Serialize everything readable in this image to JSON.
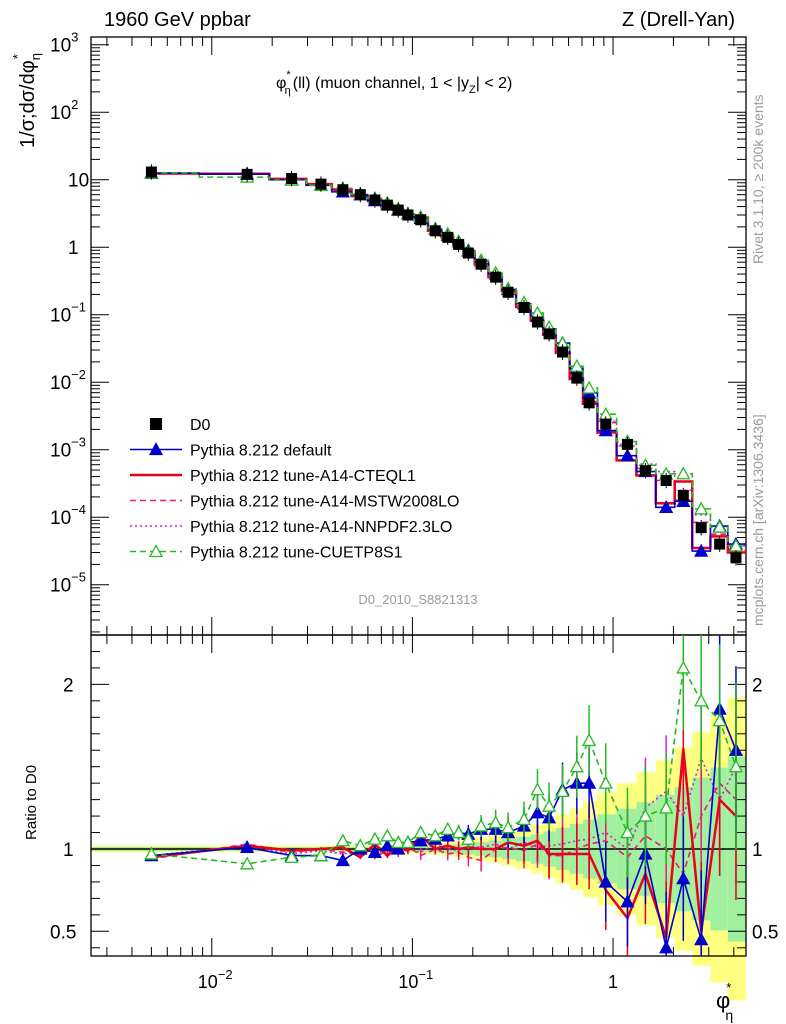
{
  "header": {
    "left": "1960 GeV ppbar",
    "right": "Z (Drell-Yan)"
  },
  "side_labels": {
    "rivet": "Rivet 3.1.10, ≥ 200k events",
    "mcplots": "mcplots.cern.ch [arXiv:1306.3436]"
  },
  "chart_data": {
    "type": "line",
    "title": "φ*η(ll) (muon channel, 1 < |yZ| < 2)",
    "title_parts": {
      "phi": "φ",
      "star": "*",
      "eta": "η",
      "rest1": "(ll) (muon channel, 1 < |y",
      "sub": "Z",
      "rest2": "| < 2)"
    },
    "analysis_id": "D0_2010_S8821313",
    "xlabel": {
      "base": "φ",
      "sup": "*",
      "sub": "η"
    },
    "ylabel": {
      "main": "1/σ;dσ/dφ",
      "sub": "η",
      "sup": "*"
    },
    "ratio_ylabel": "Ratio to D0",
    "xscale": "log",
    "yscale": "log",
    "xlim": [
      0.0025,
      4.6
    ],
    "ylim": [
      1.8e-06,
      1300
    ],
    "ratio_ylim": [
      0.35,
      2.3
    ],
    "x_ticks": [
      {
        "v": 0.01,
        "base": "10",
        "exp": "−2"
      },
      {
        "v": 0.1,
        "base": "10",
        "exp": "−1"
      },
      {
        "v": 1,
        "base": "1",
        "exp": ""
      }
    ],
    "y_ticks": [
      {
        "v": 1e-05,
        "base": "10",
        "exp": "−5"
      },
      {
        "v": 0.0001,
        "base": "10",
        "exp": "−4"
      },
      {
        "v": 0.001,
        "base": "10",
        "exp": "−3"
      },
      {
        "v": 0.01,
        "base": "10",
        "exp": "−2"
      },
      {
        "v": 0.1,
        "base": "10",
        "exp": "−1"
      },
      {
        "v": 1,
        "base": "1",
        "exp": ""
      },
      {
        "v": 10,
        "base": "10",
        "exp": ""
      },
      {
        "v": 100,
        "base": "10",
        "exp": "2"
      },
      {
        "v": 1000,
        "base": "10",
        "exp": "3"
      }
    ],
    "ratio_ticks": [
      {
        "v": 0.5,
        "label": "0.5"
      },
      {
        "v": 1,
        "label": "1"
      },
      {
        "v": 2,
        "label": "2"
      }
    ],
    "x": [
      0.005,
      0.015,
      0.025,
      0.035,
      0.045,
      0.055,
      0.065,
      0.075,
      0.085,
      0.095,
      0.11,
      0.13,
      0.15,
      0.17,
      0.19,
      0.22,
      0.26,
      0.3,
      0.36,
      0.42,
      0.48,
      0.56,
      0.66,
      0.76,
      0.92,
      1.18,
      1.45,
      1.84,
      2.24,
      2.75,
      3.4,
      4.1
    ],
    "data_values": [
      13.0,
      12.0,
      10.4,
      8.6,
      7.1,
      6.0,
      5.0,
      4.2,
      3.55,
      3.0,
      2.55,
      1.75,
      1.4,
      1.1,
      0.82,
      0.56,
      0.36,
      0.215,
      0.128,
      0.078,
      0.052,
      0.028,
      0.0115,
      0.00495,
      0.0024,
      0.0012,
      0.00049,
      0.00035,
      0.00021,
      7e-05,
      4e-05,
      2.5e-05
    ],
    "series": [
      {
        "name": "D0",
        "color": "#000000",
        "style": "data",
        "ratios": [
          1,
          1,
          1,
          1,
          1,
          1,
          1,
          1,
          1,
          1,
          1,
          1,
          1,
          1,
          1,
          1,
          1,
          1,
          1,
          1,
          1,
          1,
          1,
          1,
          1,
          1,
          1,
          1,
          1,
          1,
          1,
          1
        ]
      },
      {
        "name": "Pythia 8.212 default",
        "color": "#0000cc",
        "style": "solid-triangle",
        "ratios": [
          0.96,
          1.01,
          0.96,
          0.96,
          0.93,
          1.0,
          0.98,
          1.02,
          1.0,
          1.04,
          1.05,
          1.06,
          1.08,
          1.1,
          1.09,
          1.12,
          1.12,
          1.1,
          1.14,
          1.22,
          1.19,
          1.36,
          1.4,
          1.4,
          0.8,
          0.68,
          0.97,
          0.4,
          0.82,
          0.45,
          1.85,
          1.6
        ]
      },
      {
        "name": "Pythia 8.212 tune-A14-CTEQL1",
        "color": "#e8001e",
        "style": "solid",
        "ratios": [
          0.95,
          1.02,
          0.99,
          1.0,
          1.01,
          0.95,
          1.03,
          0.96,
          1.01,
          0.99,
          1.08,
          1.0,
          1.02,
          1.0,
          1.01,
          1.0,
          1.0,
          1.04,
          1.02,
          1.05,
          0.97,
          0.97,
          0.97,
          0.97,
          0.75,
          0.58,
          0.85,
          0.46,
          1.61,
          0.5,
          1.3,
          1.2
        ]
      },
      {
        "name": "Pythia 8.212 tune-A14-MSTW2008LO",
        "color": "#f0197a",
        "style": "dashed",
        "ratios": [
          0.94,
          1.03,
          0.98,
          1.0,
          0.98,
          0.97,
          0.95,
          0.99,
          0.97,
          1.02,
          0.96,
          1.0,
          0.97,
          0.98,
          0.95,
          0.93,
          1.0,
          1.01,
          0.99,
          1.03,
          0.96,
          0.96,
          1.0,
          1.03,
          1.05,
          0.95,
          1.08,
          1.0,
          0.85,
          1.2,
          1.4,
          1.3
        ]
      },
      {
        "name": "Pythia 8.212 tune-A14-NNPDF2.3LO",
        "color": "#cc22cc",
        "style": "dotted",
        "ratios": [
          0.96,
          1.02,
          0.97,
          0.99,
          0.97,
          0.98,
          0.99,
          0.97,
          1.01,
          1.0,
          0.98,
          1.03,
          1.0,
          0.99,
          1.02,
          1.01,
          1.03,
          1.0,
          1.04,
          1.01,
          1.02,
          1.03,
          1.05,
          1.06,
          1.1,
          1.0,
          1.25,
          1.35,
          1.2,
          1.55,
          1.3,
          1.5
        ]
      },
      {
        "name": "Pythia 8.212 tune-CUETP8S1",
        "color": "#22bb22",
        "style": "dashed-triangle",
        "ratios": [
          0.97,
          0.91,
          0.95,
          0.96,
          1.05,
          1.02,
          1.06,
          1.08,
          1.04,
          1.04,
          1.1,
          1.08,
          1.12,
          1.1,
          1.06,
          1.14,
          1.16,
          1.13,
          1.18,
          1.36,
          1.26,
          1.35,
          1.5,
          1.66,
          1.4,
          1.1,
          1.2,
          1.25,
          2.1,
          1.9,
          1.78,
          1.5
        ]
      }
    ]
  }
}
